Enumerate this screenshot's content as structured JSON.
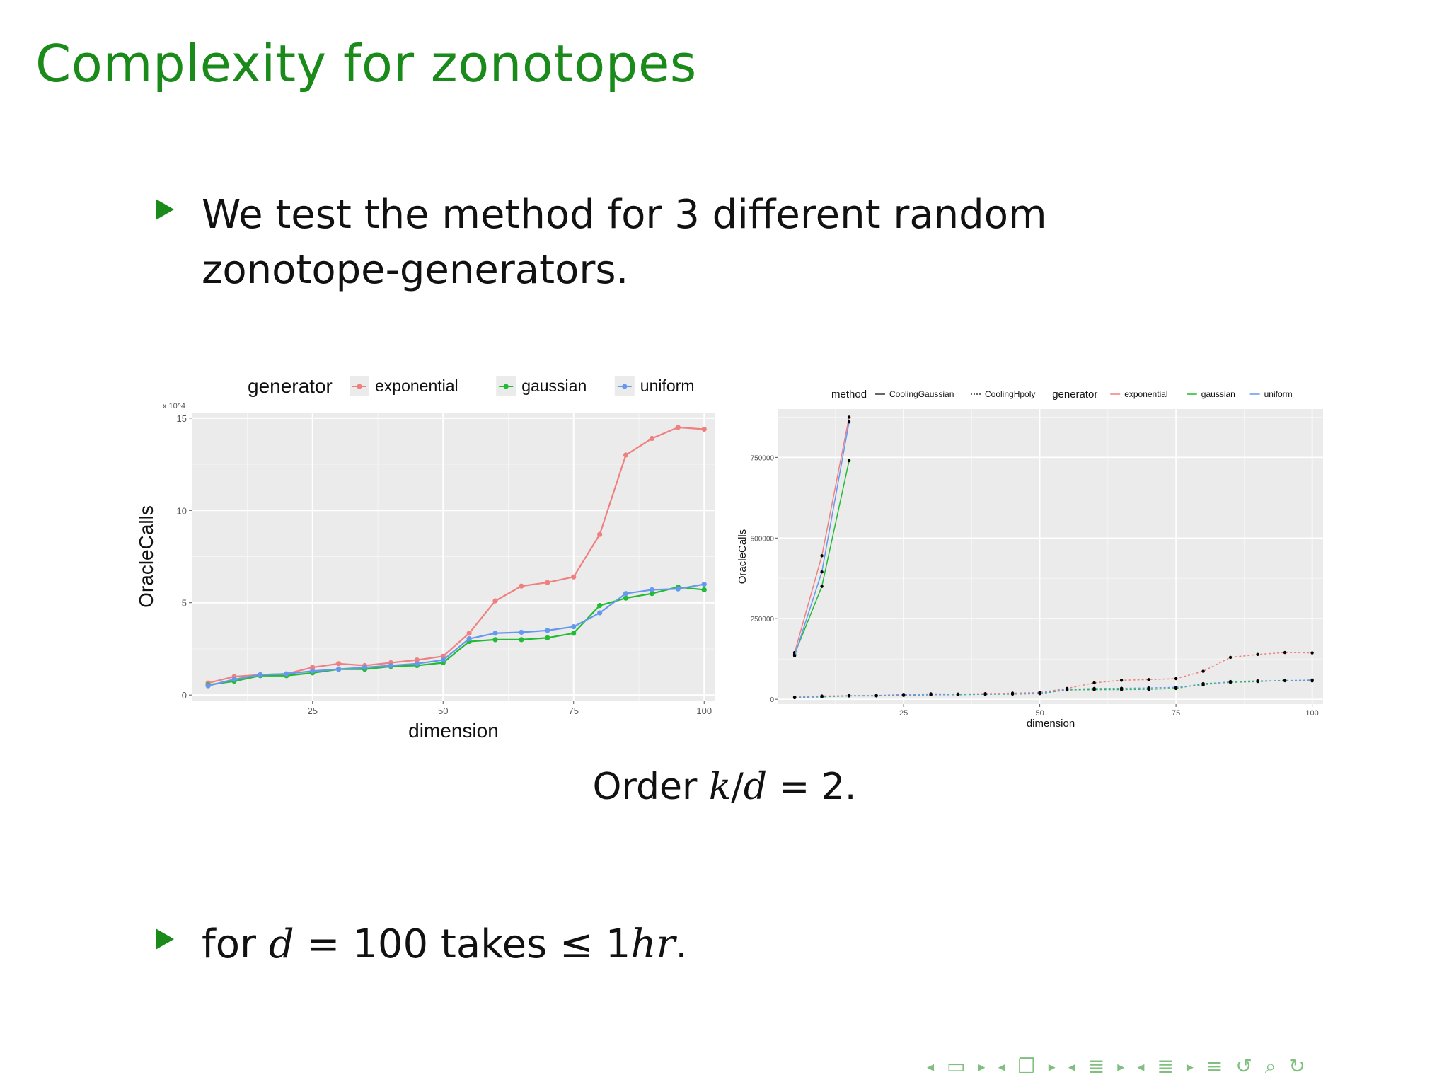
{
  "slide": {
    "title": "Complexity for zonotopes",
    "bullet1": "We test the method for 3 different random zonotope-generators.",
    "caption_prefix": "Order ",
    "caption_k": "k",
    "caption_slash": "/",
    "caption_d": "d",
    "caption_suffix": " = 2.",
    "bullet2_prefix": "for ",
    "bullet2_d": "d",
    "bullet2_mid": " = 100 takes ≤ 1",
    "bullet2_hr": "hr",
    "bullet2_end": "."
  },
  "colors": {
    "title": "#1a8a1a",
    "exponential": "#f08080",
    "gaussian": "#22bb33",
    "uniform": "#6699ee",
    "panel": "#ebebeb"
  },
  "chart_data": [
    {
      "type": "line",
      "legend_title": "generator",
      "legend_position": "top",
      "xlabel": "dimension",
      "ylabel": "OracleCalls",
      "y_multiplier_label": "x 10^4",
      "xlim": [
        2,
        102
      ],
      "ylim": [
        -0.3,
        15.3
      ],
      "x_ticks": [
        25,
        50,
        75,
        100
      ],
      "y_ticks": [
        0,
        5,
        10,
        15
      ],
      "grid": true,
      "x": [
        5,
        10,
        15,
        20,
        25,
        30,
        35,
        40,
        45,
        50,
        55,
        60,
        65,
        70,
        75,
        80,
        85,
        90,
        95,
        100
      ],
      "series": [
        {
          "name": "exponential",
          "values": [
            0.65,
            1.0,
            1.1,
            1.15,
            1.5,
            1.7,
            1.6,
            1.75,
            1.9,
            2.1,
            3.35,
            5.1,
            5.9,
            6.1,
            6.4,
            8.7,
            13.0,
            13.9,
            14.5,
            14.4
          ]
        },
        {
          "name": "gaussian",
          "values": [
            0.55,
            0.75,
            1.05,
            1.05,
            1.2,
            1.4,
            1.4,
            1.55,
            1.6,
            1.75,
            2.9,
            3.0,
            3.0,
            3.1,
            3.35,
            4.85,
            5.25,
            5.5,
            5.85,
            5.7
          ]
        },
        {
          "name": "uniform",
          "values": [
            0.5,
            0.85,
            1.1,
            1.15,
            1.3,
            1.4,
            1.5,
            1.6,
            1.7,
            1.9,
            3.05,
            3.35,
            3.4,
            3.5,
            3.7,
            4.45,
            5.5,
            5.7,
            5.75,
            6.0
          ]
        }
      ]
    },
    {
      "type": "line",
      "legend_titles": [
        "method",
        "generator"
      ],
      "legend_position": "top",
      "methods": [
        "CoolingGaussian",
        "CoolingHpoly"
      ],
      "xlabel": "dimension",
      "ylabel": "OracleCalls",
      "xlim": [
        2,
        102
      ],
      "ylim": [
        -15000,
        900000
      ],
      "x_ticks": [
        25,
        50,
        75,
        100
      ],
      "y_ticks": [
        0,
        250000,
        500000,
        750000
      ],
      "y_tick_labels": [
        "0",
        "250000",
        "500000",
        "750000"
      ],
      "grid": true,
      "series": [
        {
          "name": "exponential",
          "method": "CoolingHpoly",
          "x": [
            5,
            10,
            15
          ],
          "values": [
            145000,
            445000,
            875000
          ]
        },
        {
          "name": "gaussian",
          "method": "CoolingHpoly",
          "x": [
            5,
            10,
            15
          ],
          "values": [
            140000,
            350000,
            740000
          ]
        },
        {
          "name": "uniform",
          "method": "CoolingHpoly",
          "x": [
            5,
            10,
            15
          ],
          "values": [
            135000,
            395000,
            860000
          ]
        },
        {
          "name": "exponential",
          "method": "CoolingGaussian",
          "x": [
            5,
            10,
            15,
            20,
            25,
            30,
            35,
            40,
            45,
            50,
            55,
            60,
            65,
            70,
            75,
            80,
            85,
            90,
            95,
            100
          ],
          "values": [
            6500,
            10000,
            11000,
            11500,
            15000,
            17000,
            16000,
            17500,
            19000,
            21000,
            33500,
            51000,
            59000,
            61000,
            64000,
            87000,
            130000,
            139000,
            145000,
            144000
          ]
        },
        {
          "name": "gaussian",
          "method": "CoolingGaussian",
          "x": [
            5,
            10,
            15,
            20,
            25,
            30,
            35,
            40,
            45,
            50,
            55,
            60,
            65,
            70,
            75,
            80,
            85,
            90,
            95,
            100
          ],
          "values": [
            5500,
            7500,
            10500,
            10500,
            12000,
            14000,
            14000,
            15500,
            16000,
            17500,
            29000,
            30000,
            30000,
            31000,
            33500,
            48500,
            52500,
            55000,
            58500,
            57000
          ]
        },
        {
          "name": "uniform",
          "method": "CoolingGaussian",
          "x": [
            5,
            10,
            15,
            20,
            25,
            30,
            35,
            40,
            45,
            50,
            55,
            60,
            65,
            70,
            75,
            80,
            85,
            90,
            95,
            100
          ],
          "values": [
            5000,
            8500,
            11000,
            11500,
            13000,
            14000,
            15000,
            16000,
            17000,
            19000,
            30500,
            33500,
            34000,
            35000,
            37000,
            44500,
            55000,
            57000,
            57500,
            60000
          ]
        }
      ]
    }
  ],
  "nav": {
    "icons": [
      "nav-left-icon",
      "frame-icon",
      "nav-right-icon",
      "subsection-left-icon",
      "subsection-icon",
      "subsection-right-icon",
      "section-left-icon",
      "section-icon",
      "section-right-icon",
      "align-icon",
      "search-icon",
      "undo-icon"
    ]
  }
}
